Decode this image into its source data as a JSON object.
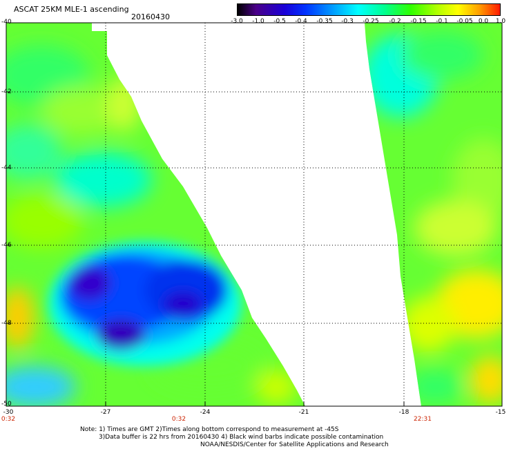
{
  "header": {
    "title": "ASCAT 25KM MLE-1 ascending",
    "date": "20160430"
  },
  "colorbar": {
    "labels": [
      "-3.0",
      "-1.0",
      "-0.5",
      "-0.4",
      "-0.35",
      "-0.3",
      "-0.25",
      "-0.2",
      "-0.15",
      "-0.1",
      "-0.05",
      "0.0",
      "1.0"
    ],
    "colors": [
      "#000000",
      "#5a0aa0",
      "#0a0ae6",
      "#1e64ff",
      "#00c8ff",
      "#00ffd0",
      "#00ff80",
      "#20ff00",
      "#a0ff00",
      "#ffff00",
      "#ffa000",
      "#ff4000",
      "#ff0000"
    ]
  },
  "map": {
    "lat_labels": [
      "-40",
      "-42",
      "-44",
      "-46",
      "-48",
      "-50"
    ],
    "lon_labels": [
      "-30",
      "-27",
      "-24",
      "-21",
      "-18",
      "-15"
    ],
    "time_labels": [
      "0:32",
      "0:32",
      "22:31"
    ]
  },
  "notes": {
    "line1": "Note: 1) Times are GMT 2)Times along bottom correspond to measurement at -45S",
    "line2": "3)Data buffer is 22 hrs from 20160430 4) Black wind barbs indicate possible contamination",
    "line3": "NOAA/NESDIS/Center for Satellite Applications and Research"
  }
}
